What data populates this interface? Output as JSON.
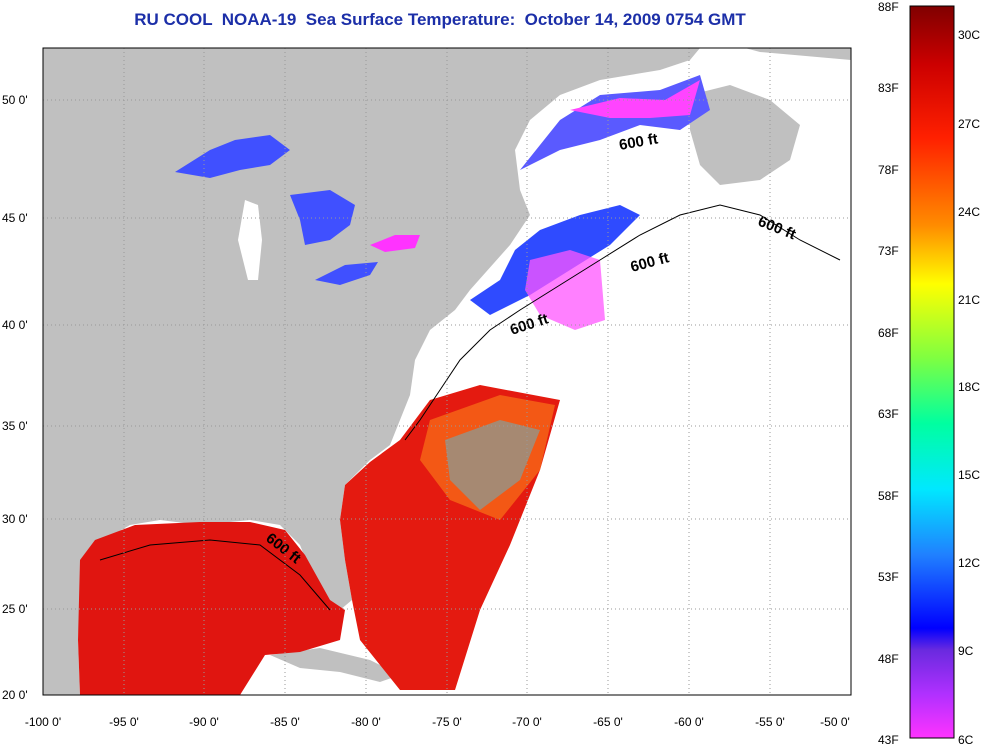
{
  "title": "RU COOL  NOAA-19  Sea Surface Temperature:  October 14, 2009 0754 GMT",
  "map": {
    "lon_ticks": [
      "-100 0'",
      "-95 0'",
      "-90 0'",
      "-85 0'",
      "-80 0'",
      "-75 0'",
      "-70 0'",
      "-65 0'",
      "-60 0'",
      "-55 0'",
      "-50 0'"
    ],
    "lat_ticks": [
      "50 0'",
      "45 0'",
      "40 0'",
      "35 0'",
      "30 0'",
      "25 0'",
      "20 0'"
    ],
    "lon_range": [
      -100,
      -50
    ],
    "lat_range": [
      20,
      52.5
    ],
    "contour_label": "600 ft",
    "colors": {
      "land": "#c0c0c0",
      "ocean_no_data": "#ffffff",
      "cold": "#3a4dff",
      "coldest": "#ff33ff",
      "warm": "#e81010",
      "grid": "#999999"
    }
  },
  "colorbar": {
    "fahrenheit_labels": [
      "88F",
      "83F",
      "78F",
      "73F",
      "68F",
      "63F",
      "58F",
      "53F",
      "48F",
      "43F"
    ],
    "celsius_labels": [
      "30C",
      "27C",
      "24C",
      "21C",
      "18C",
      "15C",
      "12C",
      "9C",
      "6C"
    ],
    "range_celsius": [
      6,
      31
    ]
  }
}
